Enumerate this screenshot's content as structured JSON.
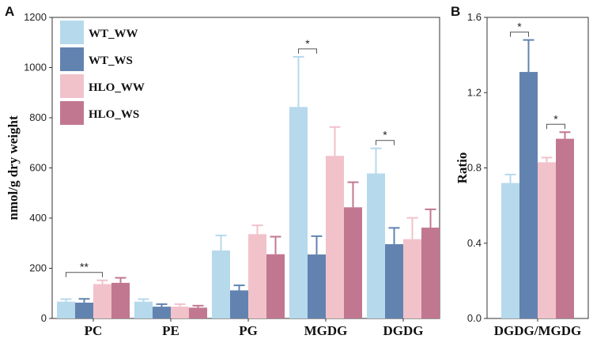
{
  "chart_data": [
    {
      "panel": "A",
      "type": "bar",
      "categories": [
        "PC",
        "PE",
        "PG",
        "MGDG",
        "DGDG"
      ],
      "ylabel": "nmol/g dry weight",
      "ylim": [
        0,
        1200
      ],
      "yticks": [
        0,
        200,
        400,
        600,
        800,
        1000,
        1200
      ],
      "series": [
        {
          "name": "WT_WW",
          "color": "#b6d9ec",
          "values": [
            67,
            67,
            271,
            843,
            578
          ],
          "errors": [
            10,
            10,
            60,
            200,
            100
          ]
        },
        {
          "name": "WT_WS",
          "color": "#6283b0",
          "values": [
            63,
            47,
            112,
            255,
            296
          ],
          "errors": [
            15,
            10,
            20,
            73,
            65
          ]
        },
        {
          "name": "HLO_WW",
          "color": "#f1c2ca",
          "values": [
            137,
            47,
            336,
            648,
            316
          ],
          "errors": [
            15,
            10,
            35,
            115,
            85
          ]
        },
        {
          "name": "HLO_WS",
          "color": "#c27790",
          "values": [
            142,
            43,
            256,
            443,
            362
          ],
          "errors": [
            20,
            8,
            70,
            100,
            73
          ]
        }
      ],
      "significance": [
        {
          "category": "PC",
          "label": "**",
          "between": [
            "WT_WW",
            "HLO_WW"
          ]
        },
        {
          "category": "MGDG",
          "label": "*",
          "between": [
            "WT_WW",
            "WT_WS"
          ]
        },
        {
          "category": "DGDG",
          "label": "*",
          "between": [
            "WT_WW",
            "WT_WS"
          ]
        }
      ],
      "legend": {
        "position": "top-left",
        "entries": [
          "WT_WW",
          "WT_WS",
          "HLO_WW",
          "HLO_WS"
        ]
      }
    },
    {
      "panel": "B",
      "type": "bar",
      "categories": [
        "DGDG/MGDG"
      ],
      "ylabel": "Ratio",
      "ylim": [
        0,
        1.6
      ],
      "yticks": [
        "0.0",
        "0.4",
        "0.8",
        "1.2",
        "1.6"
      ],
      "series": [
        {
          "name": "WT_WW",
          "color": "#b6d9ec",
          "values": [
            0.72
          ],
          "errors": [
            0.045
          ]
        },
        {
          "name": "WT_WS",
          "color": "#6283b0",
          "values": [
            1.31
          ],
          "errors": [
            0.17
          ]
        },
        {
          "name": "HLO_WW",
          "color": "#f1c2ca",
          "values": [
            0.83
          ],
          "errors": [
            0.025
          ]
        },
        {
          "name": "HLO_WS",
          "color": "#c27790",
          "values": [
            0.955
          ],
          "errors": [
            0.035
          ]
        }
      ],
      "significance": [
        {
          "category": "DGDG/MGDG",
          "label": "*",
          "between": [
            "WT_WW",
            "WT_WS"
          ]
        },
        {
          "category": "DGDG/MGDG",
          "label": "*",
          "between": [
            "HLO_WW",
            "HLO_WS"
          ]
        }
      ]
    }
  ]
}
